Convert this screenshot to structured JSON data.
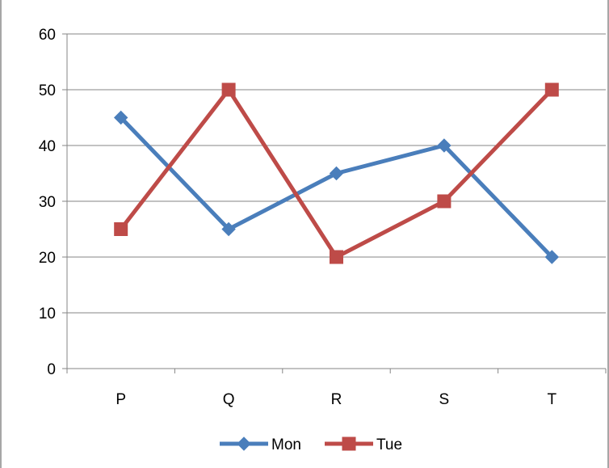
{
  "chart_data": {
    "type": "line",
    "title": "",
    "xlabel": "",
    "ylabel": "",
    "categories": [
      "P",
      "Q",
      "R",
      "S",
      "T"
    ],
    "ylim": [
      0,
      60
    ],
    "yticks": [
      "0",
      "10",
      "20",
      "30",
      "40",
      "50",
      "60"
    ],
    "grid": "horizontal",
    "legend_position": "bottom",
    "series": [
      {
        "name": "Mon",
        "values": [
          45,
          25,
          35,
          40,
          20
        ],
        "color": "#4a7ebb",
        "marker": "diamond"
      },
      {
        "name": "Tue",
        "values": [
          25,
          50,
          20,
          30,
          50
        ],
        "color": "#be4b48",
        "marker": "square"
      }
    ]
  }
}
